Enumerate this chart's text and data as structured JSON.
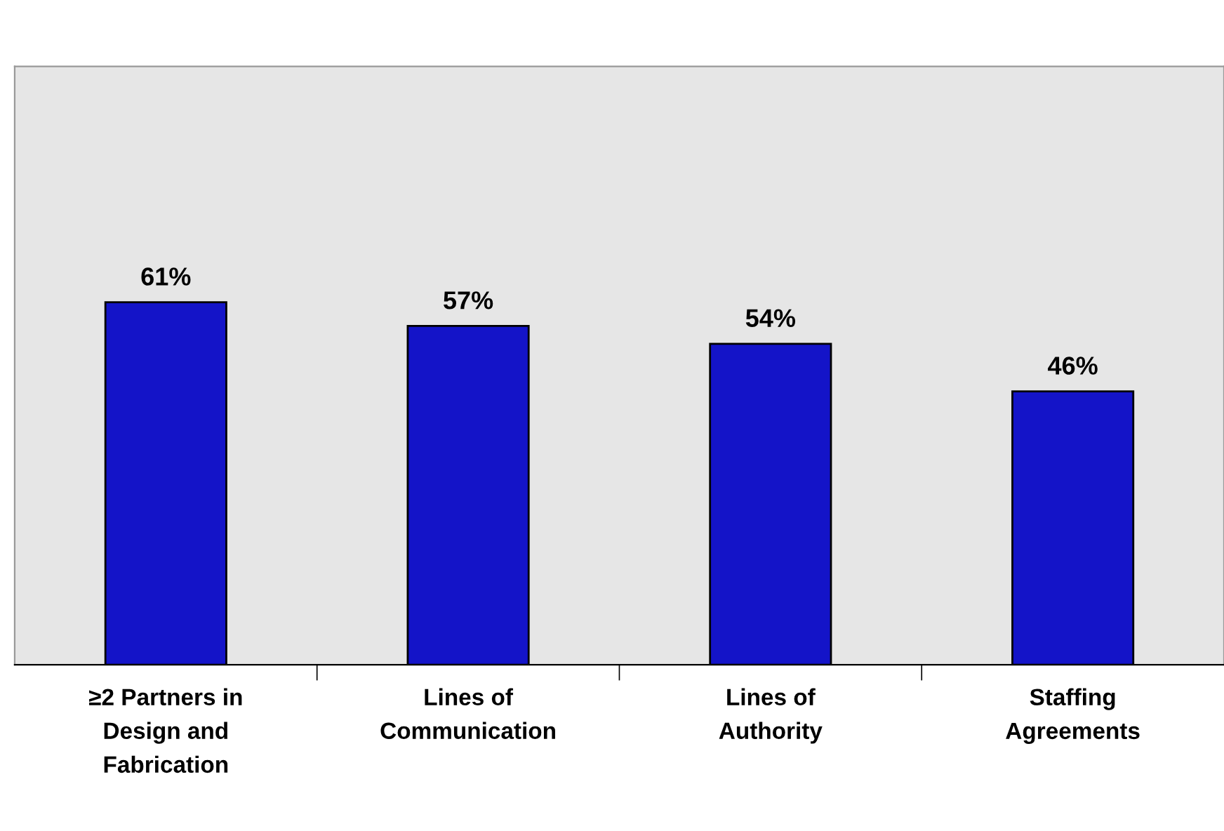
{
  "chart_data": {
    "type": "bar",
    "categories": [
      "≥2 Partners in\nDesign and\nFabrication",
      "Lines of\nCommunication",
      "Lines of\nAuthority",
      "Staffing\nAgreements"
    ],
    "values": [
      61,
      57,
      54,
      46
    ],
    "value_labels": [
      "61%",
      "57%",
      "54%",
      "46%"
    ],
    "color": "#1414c8",
    "tick_labels": "x",
    "grid": false,
    "legend": false
  }
}
